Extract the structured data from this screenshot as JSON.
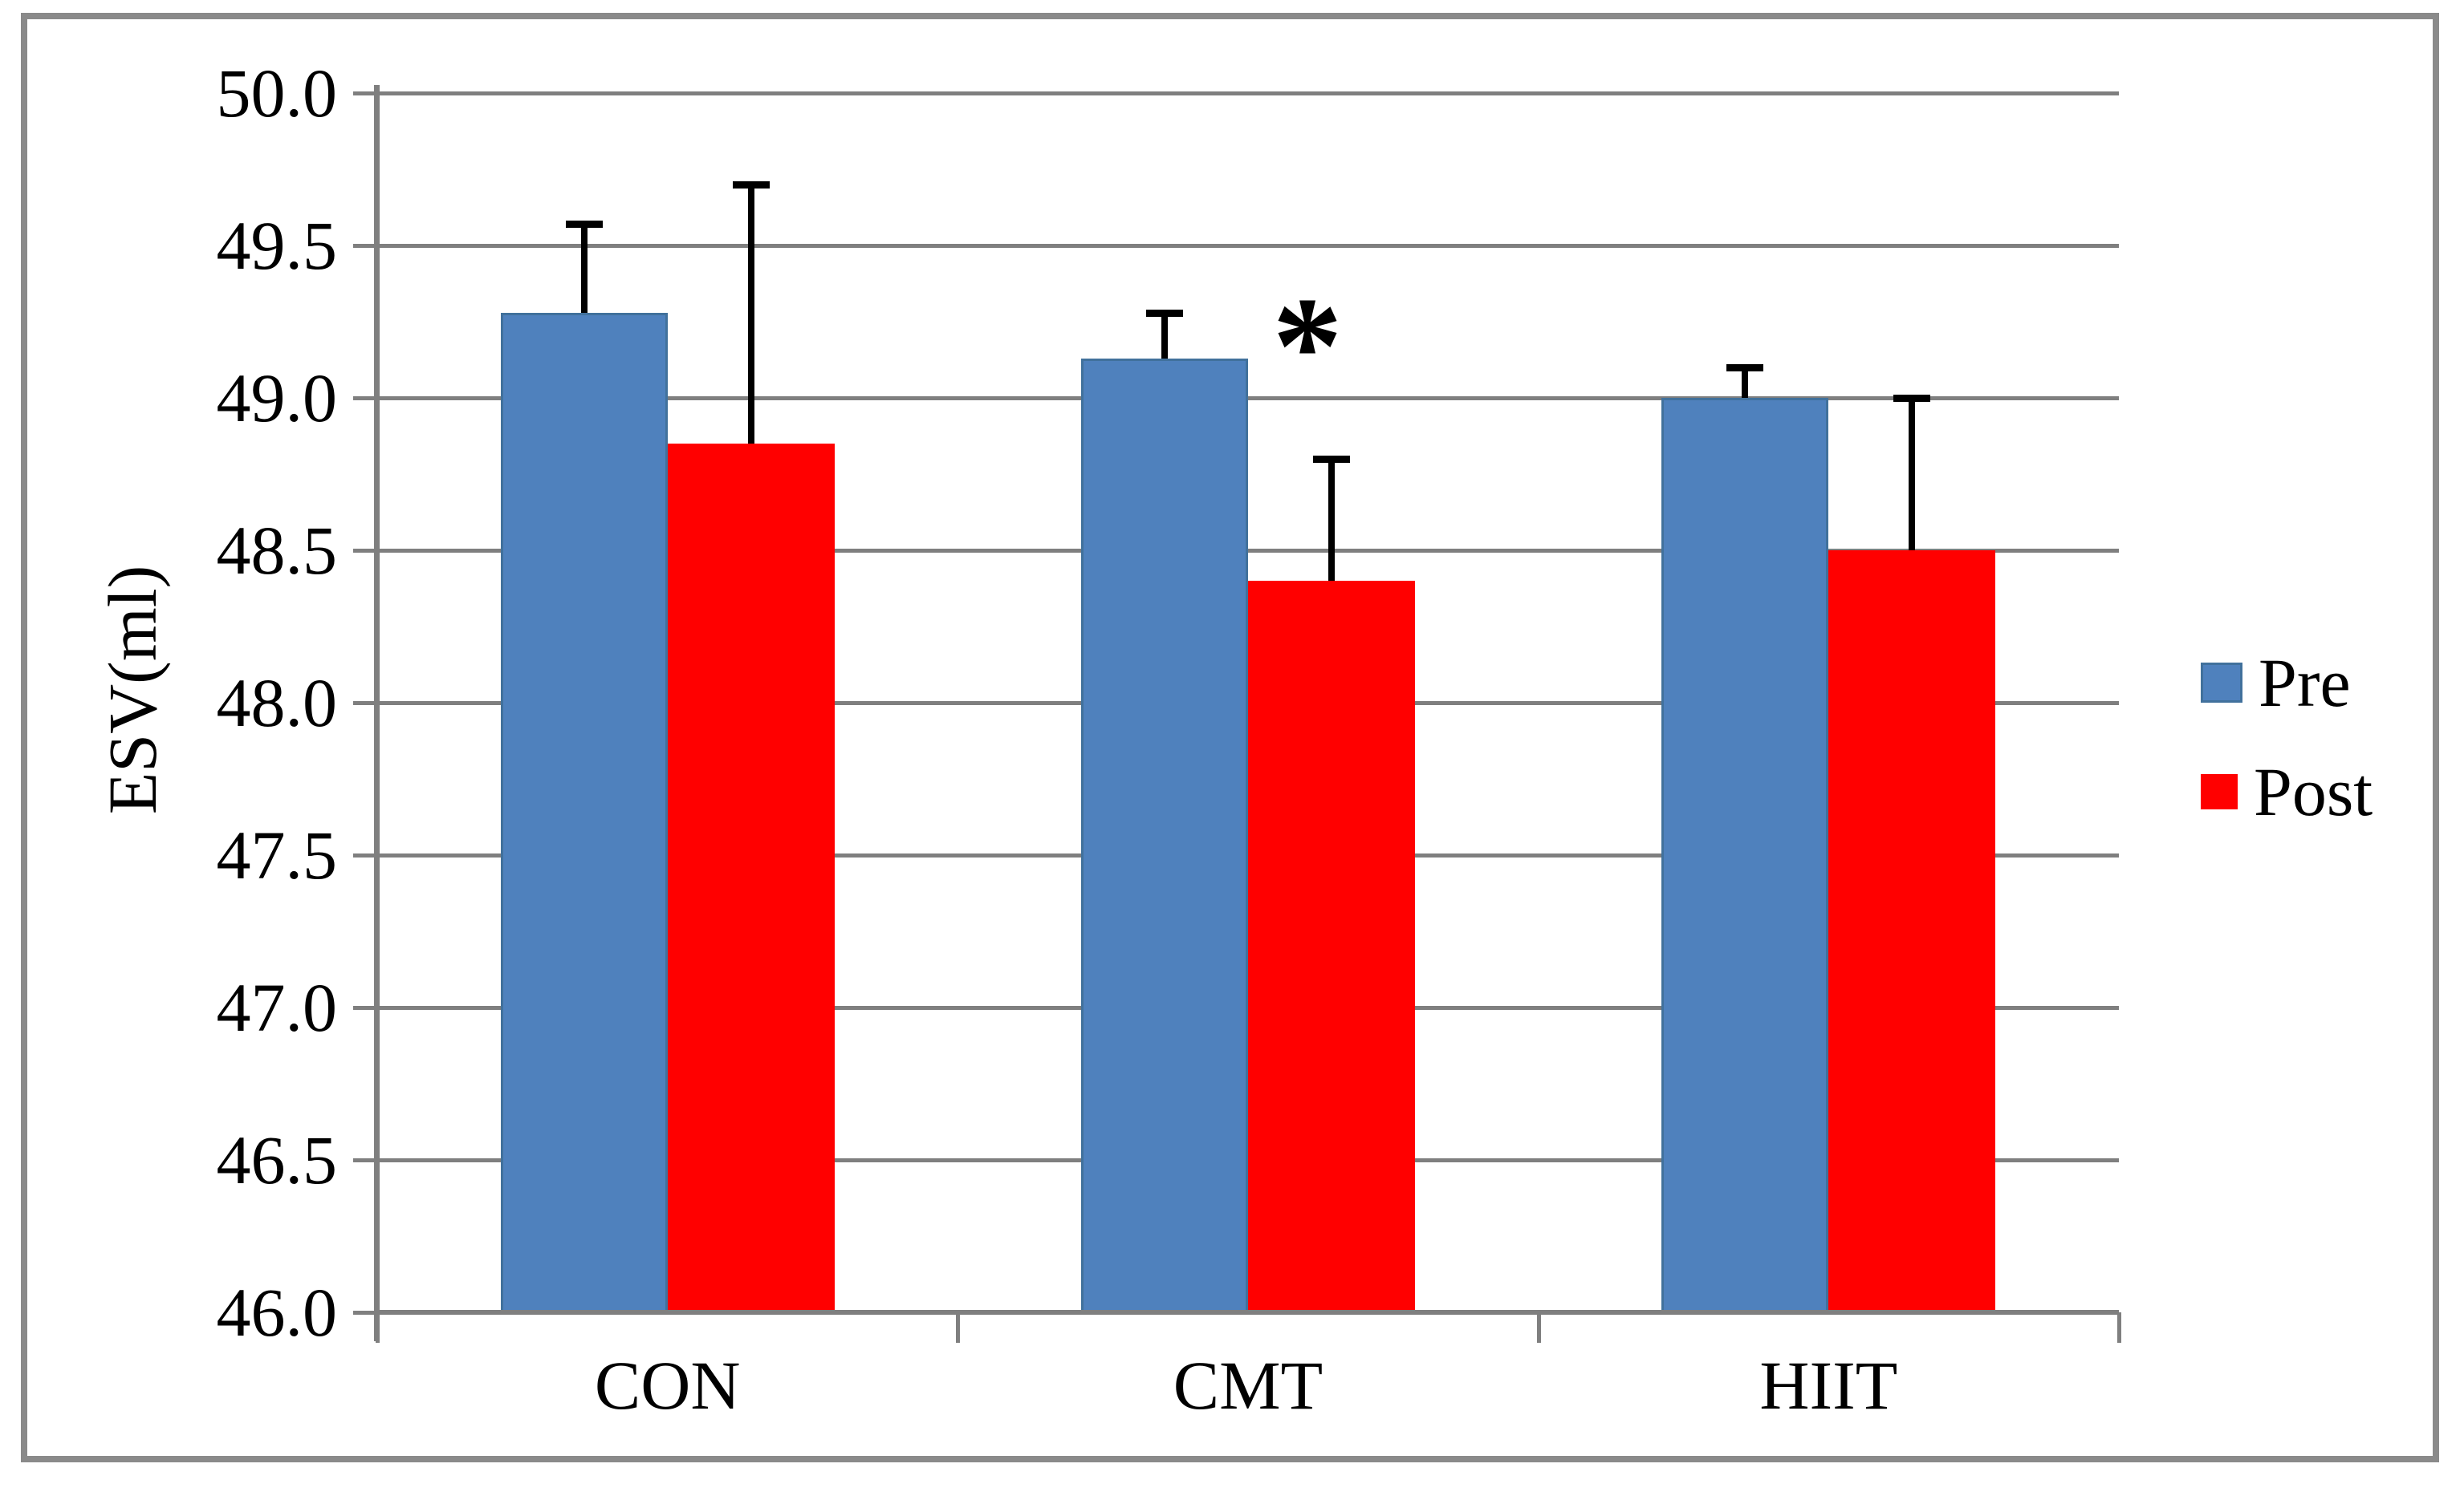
{
  "chart_data": {
    "type": "bar",
    "categories": [
      "CON",
      "CMT",
      "HIIT"
    ],
    "series": [
      {
        "name": "Pre",
        "color": "#4F81BD",
        "border_color": "#41719C",
        "values": [
          49.28,
          49.13,
          49.0
        ],
        "error_up": [
          0.29,
          0.15,
          0.1
        ]
      },
      {
        "name": "Post",
        "color": "#FF0000",
        "border_color": "#FF0000",
        "values": [
          48.85,
          48.4,
          48.5
        ],
        "error_up": [
          0.85,
          0.4,
          0.5
        ]
      }
    ],
    "y_axis": {
      "label": "ESV(ml)",
      "min": 46.0,
      "max": 50.0,
      "tick_step": 0.5,
      "tick_labels": [
        "50.0",
        "49.5",
        "49.0",
        "48.5",
        "48.0",
        "47.5",
        "47.0",
        "46.5",
        "46.0"
      ]
    },
    "grid": true,
    "legend": {
      "position": "right"
    },
    "annotation": {
      "text": "*",
      "category": "CMT",
      "series": "Post"
    },
    "error_bar_color": "#000000",
    "gridline_color": "#7F7F7F",
    "frame_color": "#8A8A8A"
  }
}
